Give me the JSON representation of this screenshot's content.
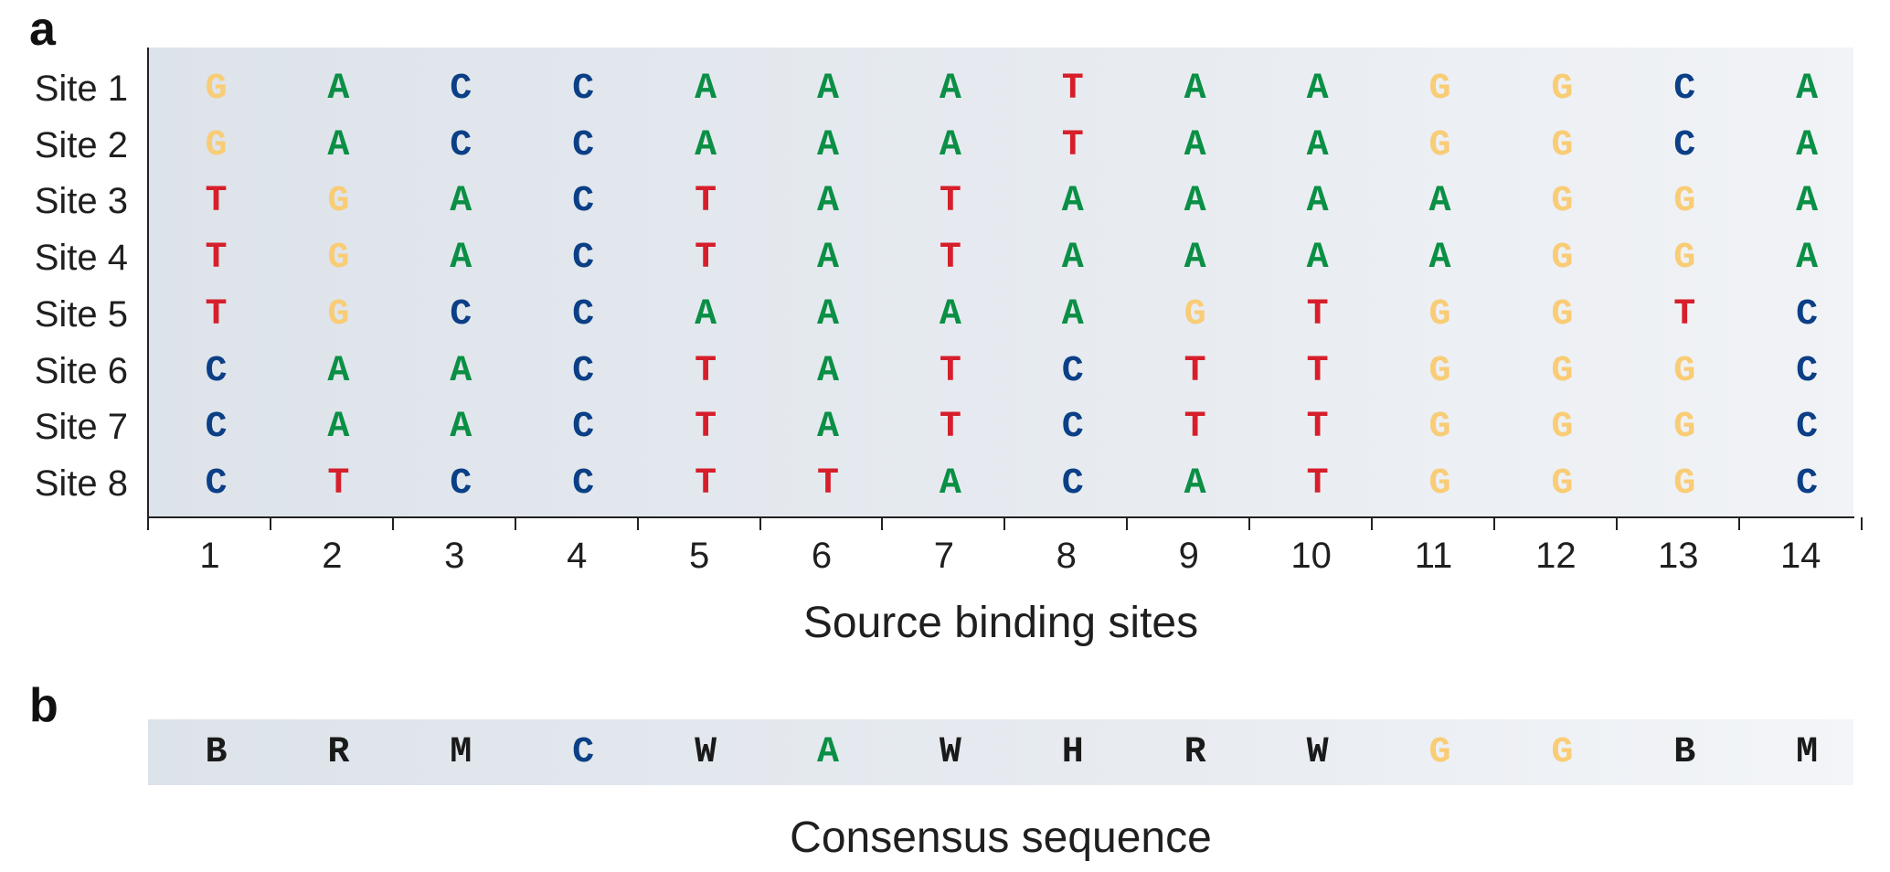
{
  "panel_labels": {
    "a": "a",
    "b": "b"
  },
  "colors": {
    "A": "#0a8f45",
    "C": "#0b3f86",
    "G": "#f9cc76",
    "T": "#d61f2b",
    "ambiguous": "#1a1a1a"
  },
  "sites": [
    {
      "label": "Site 1",
      "seq": [
        "G",
        "A",
        "C",
        "C",
        "A",
        "A",
        "A",
        "T",
        "A",
        "A",
        "G",
        "G",
        "C",
        "A"
      ]
    },
    {
      "label": "Site 2",
      "seq": [
        "G",
        "A",
        "C",
        "C",
        "A",
        "A",
        "A",
        "T",
        "A",
        "A",
        "G",
        "G",
        "C",
        "A"
      ]
    },
    {
      "label": "Site 3",
      "seq": [
        "T",
        "G",
        "A",
        "C",
        "T",
        "A",
        "T",
        "A",
        "A",
        "A",
        "A",
        "G",
        "G",
        "A"
      ]
    },
    {
      "label": "Site 4",
      "seq": [
        "T",
        "G",
        "A",
        "C",
        "T",
        "A",
        "T",
        "A",
        "A",
        "A",
        "A",
        "G",
        "G",
        "A"
      ]
    },
    {
      "label": "Site 5",
      "seq": [
        "T",
        "G",
        "C",
        "C",
        "A",
        "A",
        "A",
        "A",
        "G",
        "T",
        "G",
        "G",
        "T",
        "C"
      ]
    },
    {
      "label": "Site 6",
      "seq": [
        "C",
        "A",
        "A",
        "C",
        "T",
        "A",
        "T",
        "C",
        "T",
        "T",
        "G",
        "G",
        "G",
        "C"
      ]
    },
    {
      "label": "Site 7",
      "seq": [
        "C",
        "A",
        "A",
        "C",
        "T",
        "A",
        "T",
        "C",
        "T",
        "T",
        "G",
        "G",
        "G",
        "C"
      ]
    },
    {
      "label": "Site 8",
      "seq": [
        "C",
        "T",
        "C",
        "C",
        "T",
        "T",
        "A",
        "C",
        "A",
        "T",
        "G",
        "G",
        "G",
        "C"
      ]
    }
  ],
  "positions": [
    "1",
    "2",
    "3",
    "4",
    "5",
    "6",
    "7",
    "8",
    "9",
    "10",
    "11",
    "12",
    "13",
    "14"
  ],
  "xaxis_title": "Source binding sites",
  "consensus": [
    "B",
    "R",
    "M",
    "C",
    "W",
    "A",
    "W",
    "H",
    "R",
    "W",
    "G",
    "G",
    "B",
    "M"
  ],
  "consensus_title": "Consensus sequence"
}
